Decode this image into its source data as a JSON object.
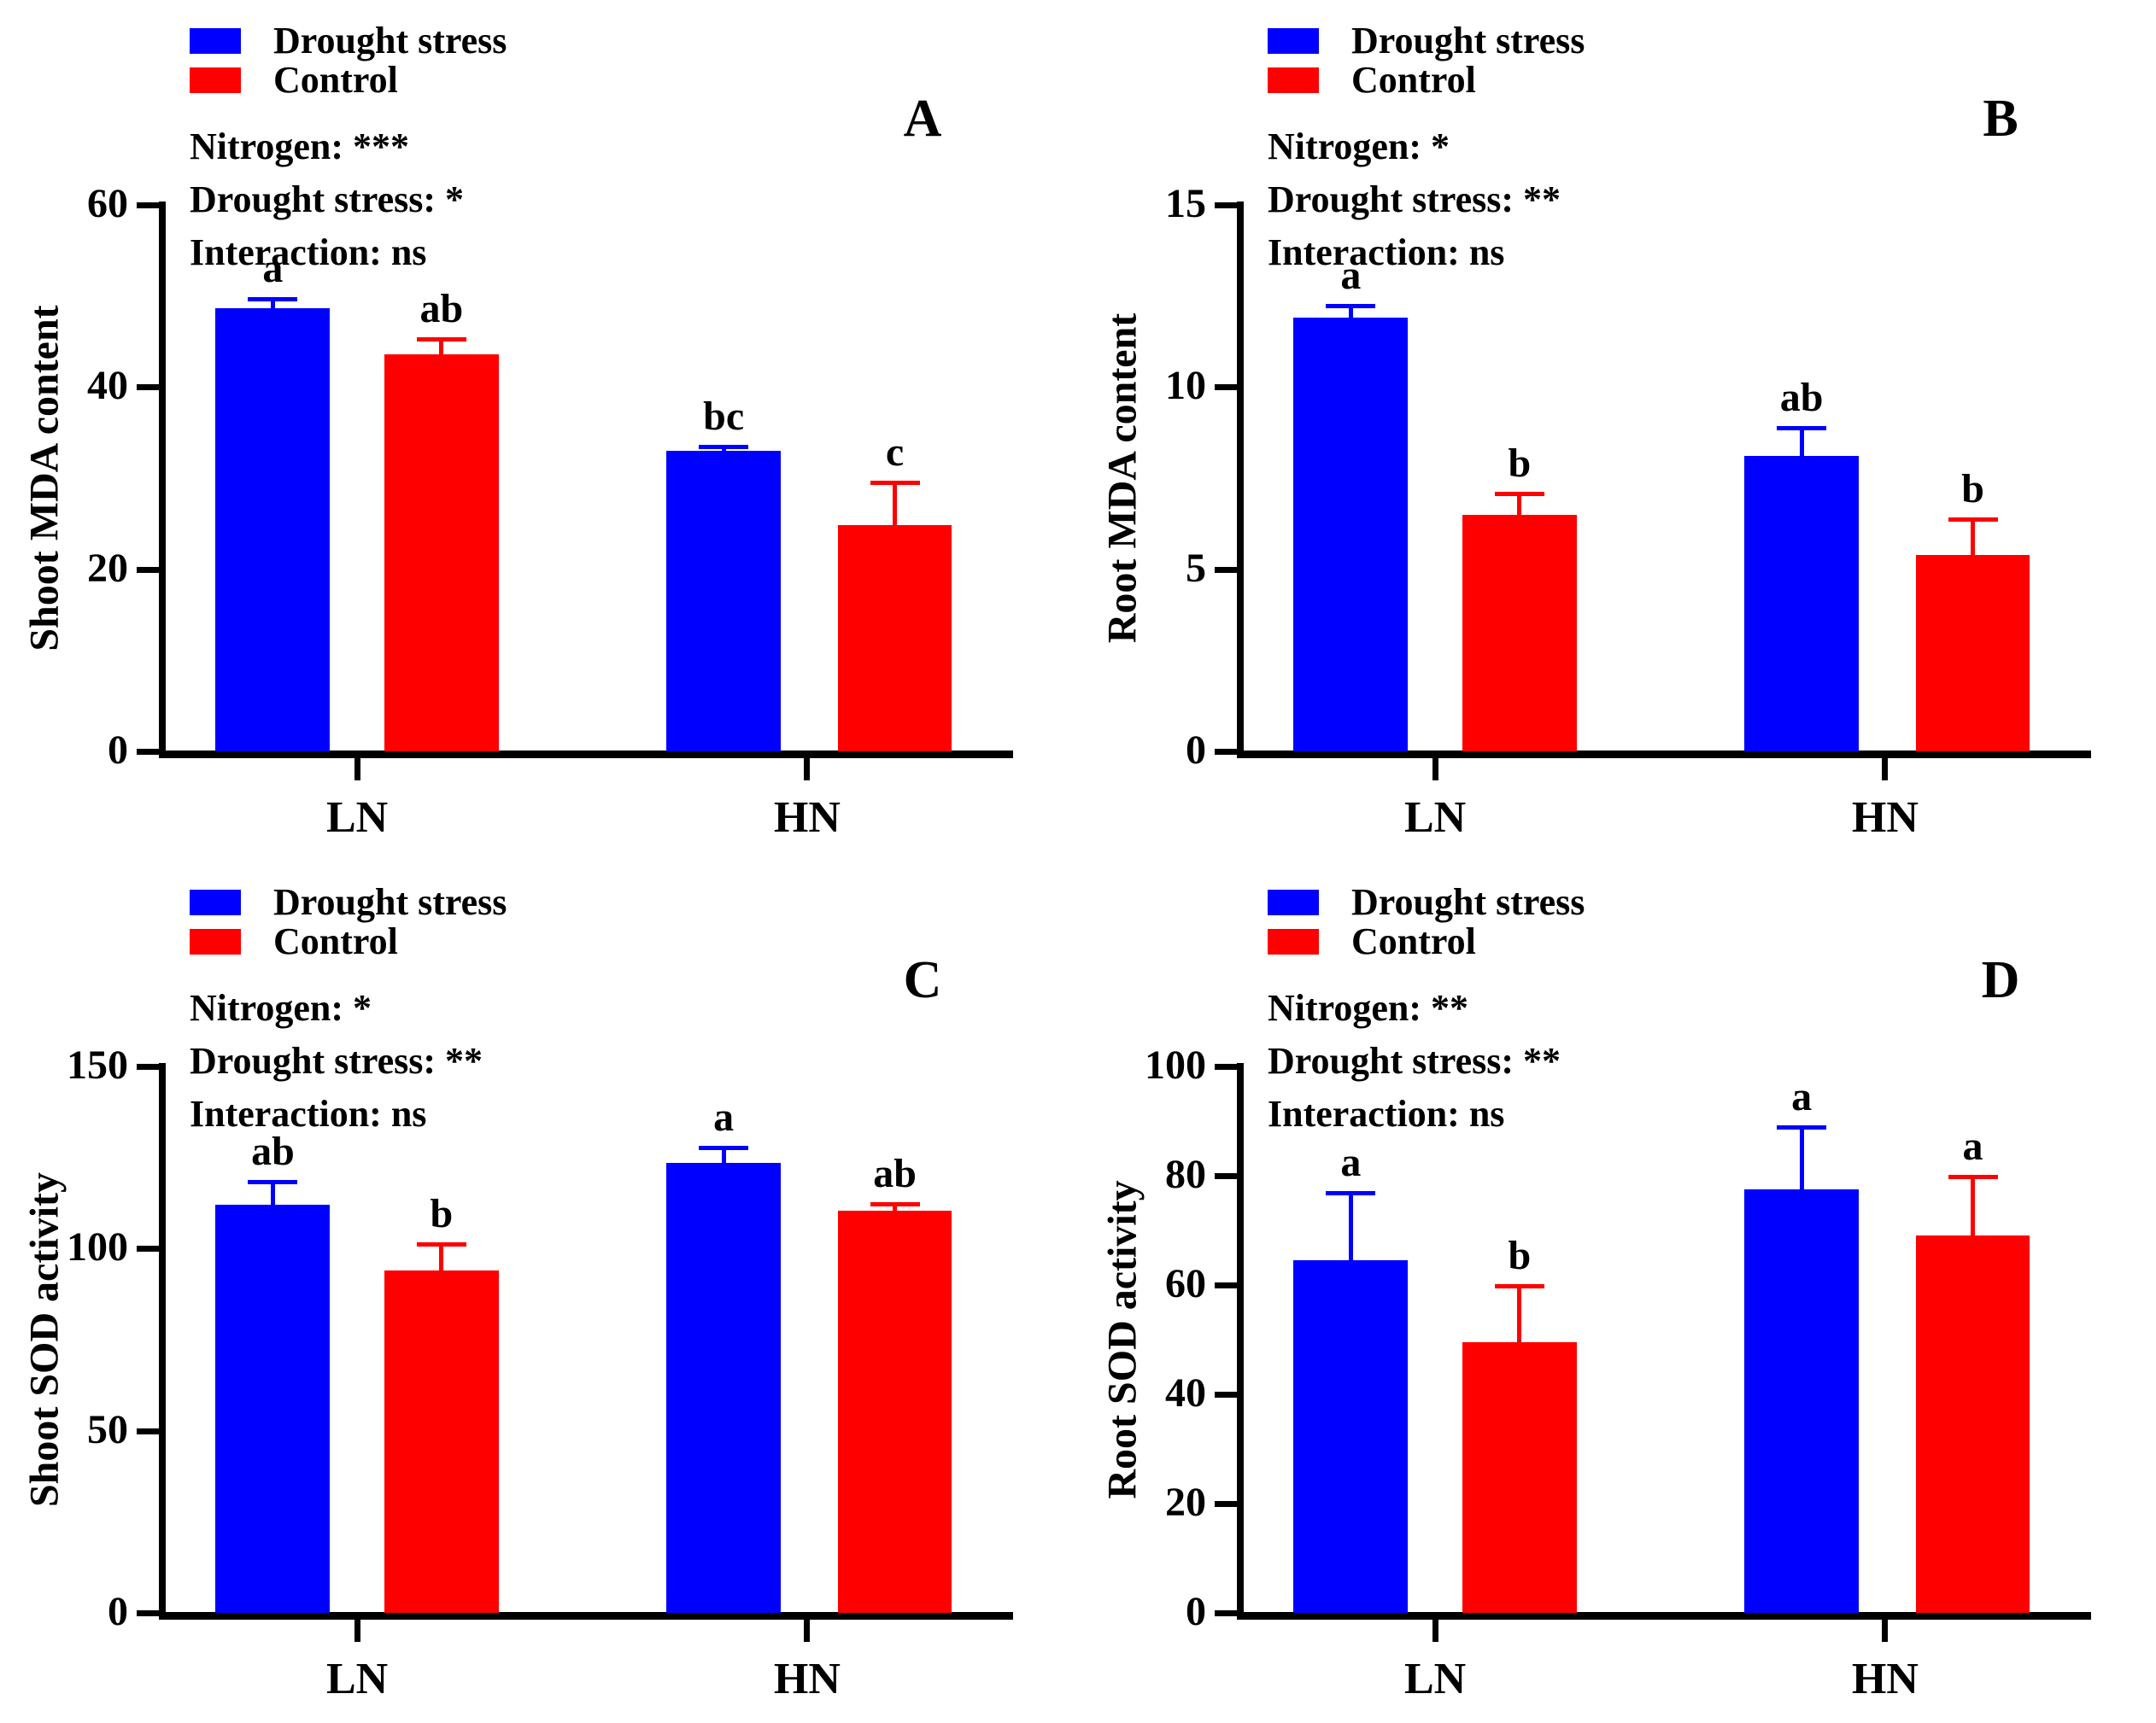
{
  "colors": {
    "drought_bar": "#0000FF",
    "control_bar": "#FF0000",
    "axis": "#000000",
    "text": "#000000"
  },
  "legend": {
    "drought_label": "Drought stress",
    "control_label": "Control"
  },
  "chart_data": [
    {
      "type": "bar",
      "panel_letter": "A",
      "ylabel": "Shoot MDA content",
      "xlabel": "",
      "ylim": [
        0,
        60
      ],
      "yticks": [
        "60",
        "40",
        "20",
        "0"
      ],
      "categories": [
        "LN",
        "HN"
      ],
      "legend_position": "top-left",
      "grid": false,
      "stats": {
        "nitrogen": "Nitrogen: ***",
        "drought": "Drought stress: *",
        "interaction": "Interaction: ns"
      },
      "series": [
        {
          "name": "Drought stress",
          "color_key": "drought_bar",
          "values": [
            48.7,
            33.0
          ],
          "errors": [
            1.1,
            0.6
          ],
          "letters": [
            "a",
            "bc"
          ]
        },
        {
          "name": "Control",
          "color_key": "control_bar",
          "values": [
            43.6,
            24.8
          ],
          "errors": [
            1.8,
            4.8
          ],
          "letters": [
            "ab",
            "c"
          ]
        }
      ]
    },
    {
      "type": "bar",
      "panel_letter": "B",
      "ylabel": "Root MDA content",
      "xlabel": "",
      "ylim": [
        0,
        15
      ],
      "yticks": [
        "15",
        "10",
        "5",
        "0"
      ],
      "categories": [
        "LN",
        "HN"
      ],
      "legend_position": "top-left",
      "grid": false,
      "stats": {
        "nitrogen": "Nitrogen: *",
        "drought": "Drought stress: **",
        "interaction": "Interaction: ns"
      },
      "series": [
        {
          "name": "Drought stress",
          "color_key": "drought_bar",
          "values": [
            11.9,
            8.1
          ],
          "errors": [
            0.35,
            0.8
          ],
          "letters": [
            "a",
            "ab"
          ]
        },
        {
          "name": "Control",
          "color_key": "control_bar",
          "values": [
            6.5,
            5.4
          ],
          "errors": [
            0.6,
            1.0
          ],
          "letters": [
            "b",
            "b"
          ]
        }
      ]
    },
    {
      "type": "bar",
      "panel_letter": "C",
      "ylabel": "Shoot SOD activity",
      "xlabel": "",
      "ylim": [
        0,
        150
      ],
      "yticks": [
        "150",
        "100",
        "50",
        "0"
      ],
      "categories": [
        "LN",
        "HN"
      ],
      "legend_position": "top-left",
      "grid": false,
      "stats": {
        "nitrogen": "Nitrogen: *",
        "drought": "Drought stress: **",
        "interaction": "Interaction: ns"
      },
      "series": [
        {
          "name": "Drought stress",
          "color_key": "drought_bar",
          "values": [
            112.0,
            123.5
          ],
          "errors": [
            6.5,
            4.5
          ],
          "letters": [
            "ab",
            "a"
          ]
        },
        {
          "name": "Control",
          "color_key": "control_bar",
          "values": [
            94.0,
            110.4
          ],
          "errors": [
            7.5,
            2.2
          ],
          "letters": [
            "b",
            "ab"
          ]
        }
      ]
    },
    {
      "type": "bar",
      "panel_letter": "D",
      "ylabel": "Root SOD activity",
      "xlabel": "",
      "ylim": [
        0,
        100
      ],
      "yticks": [
        "100",
        "80",
        "60",
        "40",
        "20",
        "0"
      ],
      "categories": [
        "LN",
        "HN"
      ],
      "legend_position": "top-left",
      "grid": false,
      "stats": {
        "nitrogen": "Nitrogen: **",
        "drought": "Drought stress: **",
        "interaction": "Interaction: ns"
      },
      "series": [
        {
          "name": "Drought stress",
          "color_key": "drought_bar",
          "values": [
            64.5,
            77.5
          ],
          "errors": [
            12.5,
            11.5
          ],
          "letters": [
            "a",
            "a"
          ]
        },
        {
          "name": "Control",
          "color_key": "control_bar",
          "values": [
            49.5,
            69.0
          ],
          "errors": [
            10.5,
            11.0
          ],
          "letters": [
            "b",
            "a"
          ]
        }
      ]
    }
  ]
}
